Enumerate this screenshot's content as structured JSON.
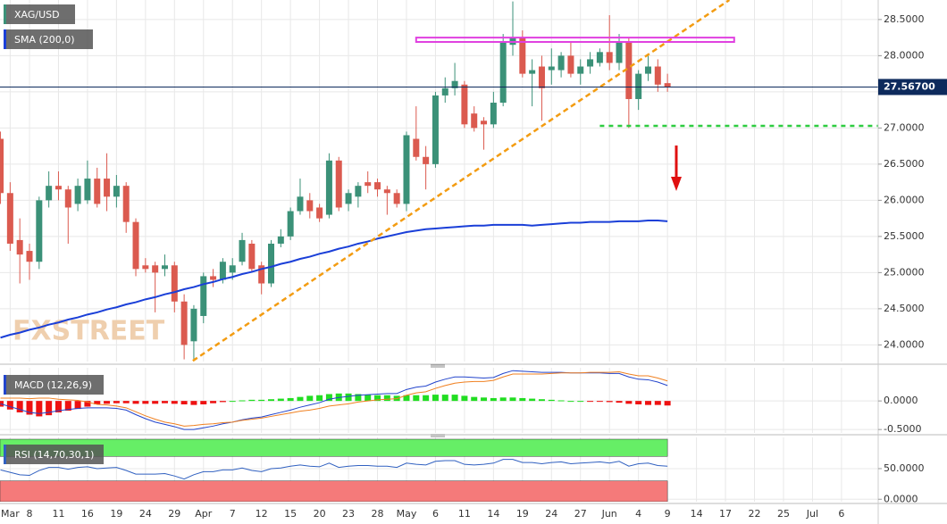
{
  "chart_data": {
    "type": "candlestick",
    "symbol": "XAG/USD",
    "grid": true,
    "xlim": [
      -0.05,
      90.8
    ],
    "xticks": [
      {
        "value": 1,
        "label": "Mar"
      },
      {
        "value": 3,
        "label": "8"
      },
      {
        "value": 6,
        "label": "11"
      },
      {
        "value": 9,
        "label": "16"
      },
      {
        "value": 12,
        "label": "19"
      },
      {
        "value": 15,
        "label": "24"
      },
      {
        "value": 18,
        "label": "29"
      },
      {
        "value": 21,
        "label": "Apr"
      },
      {
        "value": 24,
        "label": "7"
      },
      {
        "value": 27,
        "label": "12"
      },
      {
        "value": 30,
        "label": "15"
      },
      {
        "value": 33,
        "label": "20"
      },
      {
        "value": 36,
        "label": "23"
      },
      {
        "value": 39,
        "label": "28"
      },
      {
        "value": 42,
        "label": "May"
      },
      {
        "value": 45,
        "label": "6"
      },
      {
        "value": 48,
        "label": "11"
      },
      {
        "value": 51,
        "label": "14"
      },
      {
        "value": 54,
        "label": "19"
      },
      {
        "value": 57,
        "label": "24"
      },
      {
        "value": 60,
        "label": "27"
      },
      {
        "value": 63,
        "label": "Jun"
      },
      {
        "value": 66,
        "label": "4"
      },
      {
        "value": 69,
        "label": "9"
      },
      {
        "value": 72,
        "label": "14"
      },
      {
        "value": 75,
        "label": "17"
      },
      {
        "value": 78,
        "label": "22"
      },
      {
        "value": 81,
        "label": "25"
      },
      {
        "value": 84,
        "label": "Jul"
      },
      {
        "value": 87,
        "label": "6"
      }
    ],
    "ylim": [
      23.77,
      28.77
    ],
    "yticks": [
      {
        "value": 28.5,
        "label": "28.5000"
      },
      {
        "value": 28.0,
        "label": "28.0000"
      },
      {
        "value": 27.5,
        "label": "27.5000"
      },
      {
        "value": 27.0,
        "label": "27.0000"
      },
      {
        "value": 26.5,
        "label": "26.5000"
      },
      {
        "value": 26.0,
        "label": "26.0000"
      },
      {
        "value": 25.5,
        "label": "25.5000"
      },
      {
        "value": 25.0,
        "label": "25.0000"
      },
      {
        "value": 24.5,
        "label": "24.5000"
      },
      {
        "value": 24.0,
        "label": "24.0000"
      }
    ],
    "up_color": "#3b9178",
    "down_color": "#db5a4f",
    "ohlc": [
      [
        26.85,
        26.95,
        25.95,
        26.1
      ],
      [
        26.1,
        26.25,
        25.3,
        25.4
      ],
      [
        25.45,
        25.75,
        24.85,
        25.25
      ],
      [
        25.3,
        25.4,
        24.9,
        25.15
      ],
      [
        25.15,
        26.05,
        25.05,
        26.0
      ],
      [
        26.0,
        26.4,
        25.9,
        26.2
      ],
      [
        26.2,
        26.4,
        26.0,
        26.15
      ],
      [
        26.15,
        26.2,
        25.4,
        25.9
      ],
      [
        25.95,
        26.3,
        25.85,
        26.2
      ],
      [
        26.0,
        26.55,
        25.95,
        26.3
      ],
      [
        26.3,
        26.45,
        25.9,
        25.95
      ],
      [
        26.3,
        26.65,
        25.85,
        26.05
      ],
      [
        26.05,
        26.35,
        25.9,
        26.2
      ],
      [
        26.2,
        26.25,
        25.55,
        25.7
      ],
      [
        25.7,
        25.75,
        24.95,
        25.05
      ],
      [
        25.1,
        25.2,
        25.0,
        25.05
      ],
      [
        25.1,
        25.15,
        24.45,
        25.0
      ],
      [
        25.05,
        25.25,
        24.95,
        25.1
      ],
      [
        25.1,
        25.15,
        24.45,
        24.6
      ],
      [
        24.6,
        24.7,
        23.8,
        24.0
      ],
      [
        24.05,
        24.55,
        23.8,
        24.5
      ],
      [
        24.4,
        25.0,
        24.3,
        24.95
      ],
      [
        24.95,
        25.05,
        24.8,
        24.9
      ],
      [
        24.9,
        25.2,
        24.85,
        25.15
      ],
      [
        25.0,
        25.2,
        24.9,
        25.1
      ],
      [
        25.15,
        25.55,
        25.1,
        25.45
      ],
      [
        25.4,
        25.45,
        25.0,
        25.05
      ],
      [
        25.1,
        25.15,
        24.7,
        24.85
      ],
      [
        24.85,
        25.45,
        24.8,
        25.4
      ],
      [
        25.4,
        25.6,
        25.35,
        25.5
      ],
      [
        25.5,
        25.9,
        25.45,
        25.85
      ],
      [
        25.85,
        26.3,
        25.8,
        26.05
      ],
      [
        26.0,
        26.1,
        25.75,
        25.85
      ],
      [
        25.9,
        25.95,
        25.7,
        25.75
      ],
      [
        25.8,
        26.65,
        25.75,
        26.55
      ],
      [
        26.55,
        26.6,
        25.85,
        25.9
      ],
      [
        25.95,
        26.15,
        25.85,
        26.1
      ],
      [
        26.05,
        26.25,
        25.9,
        26.2
      ],
      [
        26.25,
        26.4,
        26.1,
        26.2
      ],
      [
        26.25,
        26.3,
        26.05,
        26.15
      ],
      [
        26.15,
        26.2,
        25.8,
        26.1
      ],
      [
        26.1,
        26.15,
        25.9,
        25.95
      ],
      [
        25.95,
        26.95,
        25.85,
        26.9
      ],
      [
        26.85,
        27.3,
        26.55,
        26.6
      ],
      [
        26.6,
        26.75,
        26.15,
        26.5
      ],
      [
        26.5,
        27.5,
        26.45,
        27.45
      ],
      [
        27.45,
        27.7,
        27.35,
        27.55
      ],
      [
        27.55,
        27.9,
        27.45,
        27.65
      ],
      [
        27.6,
        27.65,
        27.0,
        27.05
      ],
      [
        27.2,
        27.3,
        26.95,
        27.0
      ],
      [
        27.1,
        27.15,
        26.7,
        27.05
      ],
      [
        27.05,
        27.5,
        27.0,
        27.35
      ],
      [
        27.35,
        28.3,
        27.3,
        28.2
      ],
      [
        28.15,
        28.75,
        28.0,
        28.25
      ],
      [
        28.25,
        28.35,
        27.7,
        27.75
      ],
      [
        27.75,
        27.95,
        27.3,
        27.8
      ],
      [
        27.85,
        28.0,
        27.1,
        27.55
      ],
      [
        27.8,
        28.1,
        27.6,
        27.85
      ],
      [
        27.8,
        28.05,
        27.7,
        28.0
      ],
      [
        28.0,
        28.2,
        27.7,
        27.75
      ],
      [
        27.75,
        27.95,
        27.6,
        27.85
      ],
      [
        27.85,
        28.05,
        27.75,
        27.95
      ],
      [
        27.9,
        28.1,
        27.85,
        28.05
      ],
      [
        28.05,
        28.56,
        27.8,
        27.9
      ],
      [
        27.9,
        28.3,
        27.8,
        28.2
      ],
      [
        28.2,
        28.25,
        27.0,
        27.4
      ],
      [
        27.4,
        27.8,
        27.25,
        27.75
      ],
      [
        27.75,
        28.0,
        27.65,
        27.85
      ],
      [
        27.85,
        27.95,
        27.5,
        27.6
      ],
      [
        27.62,
        27.75,
        27.5,
        27.57
      ]
    ],
    "last_price": {
      "value": 27.567,
      "label": "27.56700"
    },
    "last_price_color": "#0d2a5c",
    "sma": {
      "name": "SMA (200,0)",
      "color": "#1a3fd8",
      "values": [
        24.1,
        24.14,
        24.17,
        24.21,
        24.24,
        24.28,
        24.31,
        24.35,
        24.38,
        24.42,
        24.45,
        24.49,
        24.52,
        24.56,
        24.59,
        24.63,
        24.66,
        24.7,
        24.73,
        24.77,
        24.8,
        24.84,
        24.87,
        24.91,
        24.94,
        24.98,
        25.01,
        25.05,
        25.08,
        25.12,
        25.15,
        25.19,
        25.22,
        25.26,
        25.29,
        25.33,
        25.36,
        25.4,
        25.43,
        25.47,
        25.5,
        25.53,
        25.56,
        25.58,
        25.6,
        25.61,
        25.62,
        25.63,
        25.64,
        25.65,
        25.65,
        25.66,
        25.66,
        25.66,
        25.66,
        25.65,
        25.66,
        25.67,
        25.68,
        25.69,
        25.69,
        25.7,
        25.7,
        25.7,
        25.71,
        25.71,
        25.71,
        25.72,
        25.72,
        25.71
      ]
    },
    "trendline": {
      "color": "#f39c12",
      "x": [
        19.9,
        75.4
      ],
      "y": [
        23.78,
        28.77
      ]
    },
    "resistance_zone": {
      "color": "#e040e0",
      "x": [
        43.0,
        75.9
      ],
      "y": [
        28.19,
        28.25
      ]
    },
    "support_line": {
      "color": "#2ecc40",
      "x": 62,
      "y": 27.03
    },
    "watermark": "FXSTREET",
    "macd": {
      "name": "MACD (12,26,9)",
      "ylim": [
        -0.56,
        0.58
      ],
      "yticks": [
        {
          "value": 0,
          "label": "0.0000"
        },
        {
          "value": -0.5,
          "label": "-0.5000"
        }
      ],
      "up_color": "#22dd22",
      "down_color": "#ee1111",
      "histogram": [
        -0.1,
        -0.15,
        -0.2,
        -0.24,
        -0.27,
        -0.25,
        -0.2,
        -0.17,
        -0.14,
        -0.1,
        -0.06,
        -0.05,
        -0.04,
        -0.04,
        -0.05,
        -0.05,
        -0.05,
        -0.04,
        -0.05,
        -0.06,
        -0.07,
        -0.06,
        -0.04,
        -0.02,
        0.0,
        0.01,
        0.02,
        0.02,
        0.03,
        0.04,
        0.05,
        0.07,
        0.09,
        0.1,
        0.12,
        0.13,
        0.13,
        0.12,
        0.11,
        0.1,
        0.1,
        0.09,
        0.1,
        0.1,
        0.1,
        0.11,
        0.11,
        0.11,
        0.09,
        0.07,
        0.06,
        0.05,
        0.06,
        0.06,
        0.05,
        0.04,
        0.03,
        0.02,
        0.01,
        0.0,
        0.0,
        -0.01,
        -0.01,
        -0.02,
        -0.03,
        -0.05,
        -0.06,
        -0.07,
        -0.07,
        -0.08
      ],
      "macd": {
        "color": "#2244cc",
        "values": [
          -0.05,
          -0.1,
          -0.15,
          -0.2,
          -0.22,
          -0.2,
          -0.17,
          -0.15,
          -0.13,
          -0.12,
          -0.12,
          -0.12,
          -0.13,
          -0.16,
          -0.24,
          -0.31,
          -0.37,
          -0.41,
          -0.45,
          -0.5,
          -0.5,
          -0.47,
          -0.44,
          -0.4,
          -0.37,
          -0.33,
          -0.3,
          -0.28,
          -0.24,
          -0.2,
          -0.16,
          -0.11,
          -0.07,
          -0.03,
          0.03,
          0.06,
          0.08,
          0.1,
          0.11,
          0.12,
          0.13,
          0.13,
          0.2,
          0.24,
          0.26,
          0.33,
          0.38,
          0.42,
          0.42,
          0.41,
          0.4,
          0.41,
          0.48,
          0.53,
          0.52,
          0.51,
          0.5,
          0.5,
          0.5,
          0.49,
          0.49,
          0.49,
          0.49,
          0.48,
          0.48,
          0.42,
          0.38,
          0.37,
          0.33,
          0.27
        ]
      },
      "signal": {
        "color": "#f08020",
        "values": [
          0.05,
          0.05,
          0.05,
          0.04,
          0.05,
          0.05,
          0.03,
          0.02,
          0.01,
          -0.02,
          -0.06,
          -0.07,
          -0.09,
          -0.12,
          -0.19,
          -0.26,
          -0.32,
          -0.37,
          -0.4,
          -0.44,
          -0.43,
          -0.41,
          -0.4,
          -0.38,
          -0.37,
          -0.34,
          -0.32,
          -0.3,
          -0.27,
          -0.24,
          -0.21,
          -0.18,
          -0.16,
          -0.13,
          -0.09,
          -0.07,
          -0.05,
          -0.02,
          0.0,
          0.02,
          0.03,
          0.04,
          0.1,
          0.14,
          0.16,
          0.22,
          0.27,
          0.31,
          0.33,
          0.34,
          0.34,
          0.36,
          0.42,
          0.47,
          0.47,
          0.47,
          0.47,
          0.48,
          0.49,
          0.49,
          0.49,
          0.5,
          0.5,
          0.5,
          0.51,
          0.47,
          0.44,
          0.44,
          0.4,
          0.35
        ]
      }
    },
    "rsi": {
      "name": "RSI (14,70,30,1)",
      "ylim": [
        -4,
        101
      ],
      "yticks": [
        {
          "value": 50,
          "label": "50.0000"
        },
        {
          "value": 0,
          "label": "0.0000"
        }
      ],
      "overbought": 70,
      "oversold": 30,
      "overbought_color": "#66ee66",
      "oversold_color": "#f57a7a",
      "color": "#3060c0",
      "values": [
        48,
        44,
        40,
        39,
        47,
        52,
        52,
        49,
        52,
        53,
        50,
        51,
        52,
        47,
        41,
        41,
        41,
        42,
        38,
        33,
        40,
        45,
        45,
        48,
        48,
        51,
        47,
        45,
        50,
        51,
        54,
        56,
        54,
        53,
        59,
        52,
        54,
        55,
        55,
        54,
        54,
        52,
        59,
        57,
        56,
        62,
        63,
        63,
        57,
        56,
        57,
        59,
        65,
        65,
        60,
        60,
        58,
        60,
        61,
        58,
        59,
        60,
        61,
        59,
        62,
        54,
        58,
        59,
        55,
        54
      ]
    }
  }
}
